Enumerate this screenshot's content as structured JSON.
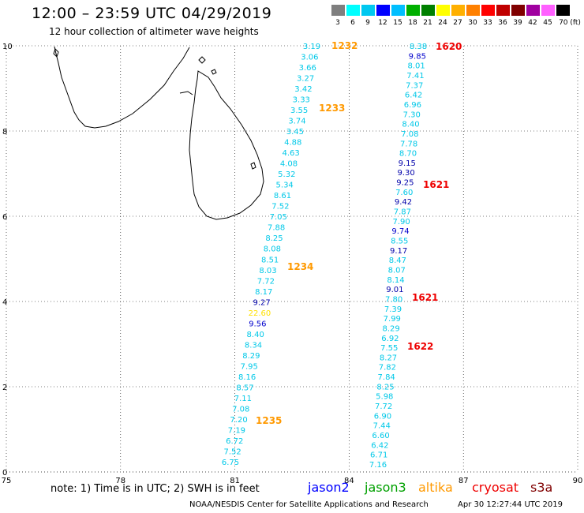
{
  "title": "12:00 – 23:59 UTC 04/29/2019",
  "subtitle": "12 hour collection of altimeter wave heights",
  "scale": {
    "ticks": [
      "3",
      "6",
      "9",
      "12",
      "15",
      "18",
      "21",
      "24",
      "27",
      "30",
      "33",
      "36",
      "39",
      "42",
      "45",
      "70 (ft)"
    ],
    "colors": [
      "#7f7f7f",
      "#00ffff",
      "#00c8f0",
      "#0000ff",
      "#00bfff",
      "#00b000",
      "#008000",
      "#ffff00",
      "#ffb000",
      "#ff8000",
      "#ff0000",
      "#c00000",
      "#800000",
      "#a000a0",
      "#ff60ff",
      "#000000"
    ]
  },
  "axes": {
    "x_ticks": [
      "75",
      "78",
      "81",
      "84",
      "87",
      "90"
    ],
    "y_ticks": [
      "10",
      "8",
      "6",
      "4",
      "2",
      "0"
    ],
    "grid": "dotted"
  },
  "passes": [
    {
      "label": "1232",
      "color": "#ff9900",
      "col": "left"
    },
    {
      "label": "1233",
      "color": "#ff9900",
      "col": "left"
    },
    {
      "label": "1234",
      "color": "#ff9900",
      "col": "left"
    },
    {
      "label": "1235",
      "color": "#ff9900",
      "col": "left"
    },
    {
      "label": "1620",
      "color": "#ee0000",
      "col": "right"
    },
    {
      "label": "1621",
      "color": "#ee0000",
      "col": "right"
    },
    {
      "label": "1621",
      "color": "#ee0000",
      "col": "right"
    },
    {
      "label": "1622",
      "color": "#ee0000",
      "col": "right"
    }
  ],
  "track_left": [
    "3.19",
    "3.06",
    "3.66",
    "3.27",
    "3.42",
    "3.33",
    "3.55",
    "3.74",
    "3.45",
    "4.88",
    "4.63",
    "4.08",
    "5.32",
    "5.34",
    "8.61",
    "7.52",
    "7.05",
    "7.88",
    "8.25",
    "8.08",
    "8.51",
    "8.03",
    "7.72",
    "8.17",
    "9.27",
    "22.60",
    "9.56",
    "8.40",
    "8.34",
    "8.29",
    "7.95",
    "8.16",
    "8.57",
    "7.11",
    "7.08",
    "7.20",
    "7.19",
    "6.72",
    "7.52",
    "6.75"
  ],
  "track_right": [
    "8.38",
    "9.85",
    "8.01",
    "7.41",
    "7.37",
    "6.42",
    "6.96",
    "7.30",
    "8.40",
    "7.08",
    "7.78",
    "8.70",
    "9.15",
    "9.30",
    "9.25",
    "7.60",
    "9.42",
    "7.87",
    "7.90",
    "9.74",
    "8.55",
    "9.17",
    "8.47",
    "8.07",
    "8.14",
    "9.01",
    "7.80",
    "7.39",
    "7.99",
    "8.29",
    "6.92",
    "7.55",
    "8.27",
    "7.82",
    "7.84",
    "8.25",
    "5.98",
    "7.72",
    "6.90",
    "7.44",
    "6.60",
    "6.42",
    "6.71",
    "7.16"
  ],
  "note": "note: 1) Time is in UTC; 2) SWH is in feet",
  "satellites": [
    {
      "name": "jason2",
      "color": "#0000ff"
    },
    {
      "name": "jason3",
      "color": "#00a000"
    },
    {
      "name": "altika",
      "color": "#ff9900"
    },
    {
      "name": "cryosat",
      "color": "#ee0000"
    },
    {
      "name": "s3a",
      "color": "#800000"
    }
  ],
  "credit": "NOAA/NESDIS Center for Satellite Applications and Research",
  "timestamp": "Apr 30 12:27:44 UTC 2019"
}
